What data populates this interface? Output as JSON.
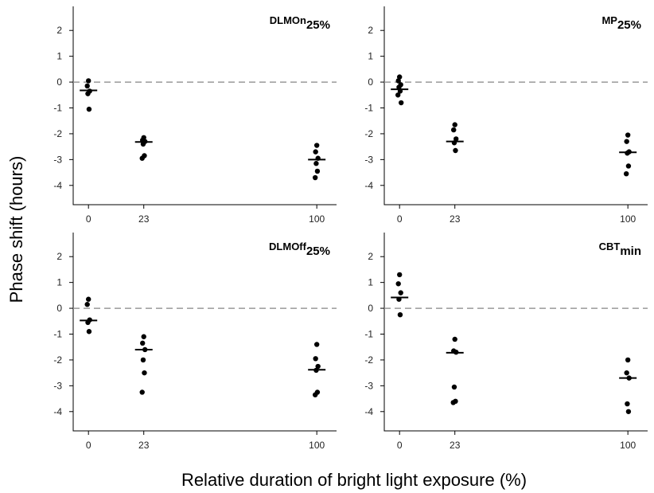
{
  "figure": {
    "ylabel": "Phase shift (hours)",
    "xlabel": "Relative duration of bright light exposure (%)"
  },
  "chart_data": [
    {
      "type": "scatter",
      "title_main": "DLMOn",
      "title_sub": "25%",
      "x_ticks": [
        "0",
        "23",
        "100"
      ],
      "y_ticks": [
        "2",
        "1",
        "0",
        "-1",
        "-2",
        "-3",
        "-4"
      ],
      "ylim": [
        -4.5,
        2.5
      ],
      "reference_line": 0,
      "groups": [
        {
          "x": "0",
          "points": [
            0.05,
            -0.15,
            -0.35,
            -0.45,
            -1.05
          ],
          "mean": -0.32
        },
        {
          "x": "23",
          "points": [
            -2.15,
            -2.25,
            -2.3,
            -2.4,
            -2.85,
            -2.95
          ],
          "mean": -2.32
        },
        {
          "x": "100",
          "points": [
            -2.45,
            -2.7,
            -2.95,
            -3.15,
            -3.45,
            -3.7
          ],
          "mean": -3.0
        }
      ]
    },
    {
      "type": "scatter",
      "title_main": "MP",
      "title_sub": "25%",
      "x_ticks": [
        "0",
        "23",
        "100"
      ],
      "y_ticks": [
        "2",
        "1",
        "0",
        "-1",
        "-2",
        "-3",
        "-4"
      ],
      "ylim": [
        -4.5,
        2.5
      ],
      "reference_line": 0,
      "groups": [
        {
          "x": "0",
          "points": [
            0.2,
            0.05,
            -0.1,
            -0.2,
            -0.35,
            -0.5,
            -0.8
          ],
          "mean": -0.28
        },
        {
          "x": "23",
          "points": [
            -1.65,
            -1.85,
            -2.2,
            -2.35,
            -2.65
          ],
          "mean": -2.3
        },
        {
          "x": "100",
          "points": [
            -2.05,
            -2.3,
            -2.7,
            -2.75,
            -3.25,
            -3.55
          ],
          "mean": -2.72
        }
      ]
    },
    {
      "type": "scatter",
      "title_main": "DLMOff",
      "title_sub": "25%",
      "x_ticks": [
        "0",
        "23",
        "100"
      ],
      "y_ticks": [
        "2",
        "1",
        "0",
        "-1",
        "-2",
        "-3",
        "-4"
      ],
      "ylim": [
        -4.5,
        2.5
      ],
      "reference_line": 0,
      "groups": [
        {
          "x": "0",
          "points": [
            0.35,
            0.15,
            -0.45,
            -0.55,
            -0.9
          ],
          "mean": -0.47
        },
        {
          "x": "23",
          "points": [
            -1.1,
            -1.35,
            -1.6,
            -2.0,
            -2.5,
            -3.25
          ],
          "mean": -1.6
        },
        {
          "x": "100",
          "points": [
            -1.4,
            -1.95,
            -2.25,
            -2.4,
            -3.25,
            -3.35
          ],
          "mean": -2.38
        }
      ]
    },
    {
      "type": "scatter",
      "title_main": "CBT",
      "title_sub": "min",
      "x_ticks": [
        "0",
        "23",
        "100"
      ],
      "y_ticks": [
        "2",
        "1",
        "0",
        "-1",
        "-2",
        "-3",
        "-4"
      ],
      "ylim": [
        -4.5,
        2.5
      ],
      "reference_line": 0,
      "groups": [
        {
          "x": "0",
          "points": [
            1.3,
            0.95,
            0.6,
            0.35,
            -0.25
          ],
          "mean": 0.42
        },
        {
          "x": "23",
          "points": [
            -1.2,
            -1.65,
            -1.7,
            -3.05,
            -3.6,
            -3.65
          ],
          "mean": -1.72
        },
        {
          "x": "100",
          "points": [
            -2.0,
            -2.5,
            -2.7,
            -3.7,
            -4.0
          ],
          "mean": -2.7
        }
      ]
    }
  ]
}
